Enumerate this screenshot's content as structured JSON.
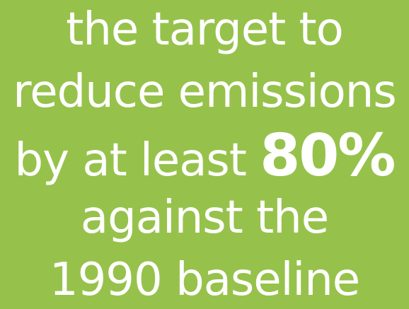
{
  "lines": [
    "the target to",
    "reduce emissions",
    "by at least",
    "against the",
    "1990 baseline"
  ],
  "highlight": "80%",
  "colors": {
    "background": "#96c24b",
    "text": "#ffffff"
  }
}
